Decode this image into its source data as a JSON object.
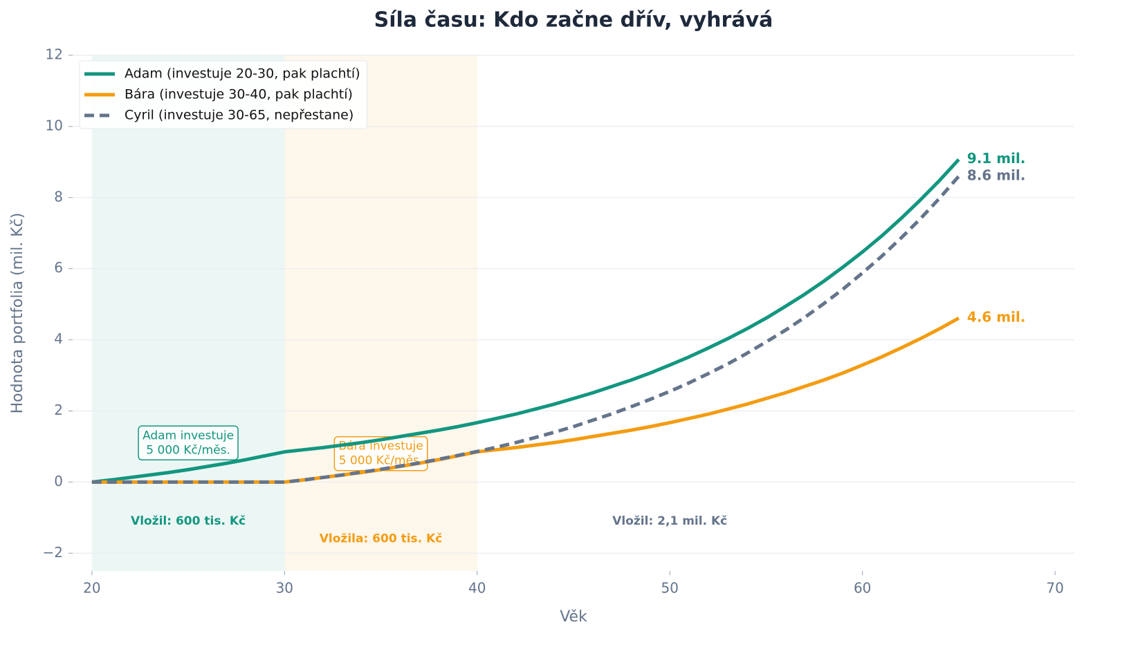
{
  "chart_data": {
    "type": "line",
    "title": "Síla času: Kdo začne dřív, vyhrává",
    "xlabel": "Věk",
    "ylabel": "Hodnota portfolia (mil. Kč)",
    "x": [
      20,
      21,
      22,
      23,
      24,
      25,
      26,
      27,
      28,
      29,
      30,
      31,
      32,
      33,
      34,
      35,
      36,
      37,
      38,
      39,
      40,
      41,
      42,
      43,
      44,
      45,
      46,
      47,
      48,
      49,
      50,
      51,
      52,
      53,
      54,
      55,
      56,
      57,
      58,
      59,
      60,
      61,
      62,
      63,
      64,
      65
    ],
    "series": [
      {
        "name": "Adam (investuje 20-30, pak plachtí)",
        "color": "#13967f",
        "dashed": false,
        "end_label": "9.1 mil.",
        "values": [
          0,
          0.06,
          0.13,
          0.2,
          0.27,
          0.35,
          0.44,
          0.53,
          0.63,
          0.74,
          0.85,
          0.91,
          0.97,
          1.04,
          1.11,
          1.19,
          1.28,
          1.37,
          1.46,
          1.56,
          1.67,
          1.79,
          1.91,
          2.05,
          2.19,
          2.35,
          2.51,
          2.69,
          2.87,
          3.07,
          3.29,
          3.52,
          3.77,
          4.03,
          4.31,
          4.61,
          4.94,
          5.28,
          5.65,
          6.05,
          6.47,
          6.92,
          7.41,
          7.93,
          8.48,
          9.07
        ]
      },
      {
        "name": "Bára (investuje 30-40, pak plachtí)",
        "color": "#f39c12",
        "dashed": false,
        "end_label": "4.6 mil.",
        "values": [
          0,
          0,
          0,
          0,
          0,
          0,
          0,
          0,
          0,
          0,
          0,
          0.06,
          0.13,
          0.2,
          0.27,
          0.35,
          0.44,
          0.53,
          0.63,
          0.74,
          0.85,
          0.91,
          0.97,
          1.04,
          1.11,
          1.19,
          1.28,
          1.37,
          1.46,
          1.56,
          1.67,
          1.79,
          1.91,
          2.05,
          2.19,
          2.35,
          2.51,
          2.69,
          2.87,
          3.07,
          3.29,
          3.52,
          3.77,
          4.03,
          4.31,
          4.61
        ]
      },
      {
        "name": "Cyril (investuje 30-65, nepřestane)",
        "color": "#64748b",
        "dashed": true,
        "end_label": "8.6 mil.",
        "values": [
          0,
          0,
          0,
          0,
          0,
          0,
          0,
          0,
          0,
          0,
          0,
          0.06,
          0.13,
          0.2,
          0.28,
          0.36,
          0.45,
          0.54,
          0.64,
          0.75,
          0.86,
          0.98,
          1.11,
          1.25,
          1.4,
          1.56,
          1.74,
          1.92,
          2.12,
          2.33,
          2.55,
          2.79,
          3.05,
          3.32,
          3.62,
          3.94,
          4.27,
          4.63,
          5.02,
          5.43,
          5.88,
          6.35,
          6.86,
          7.4,
          7.98,
          8.6
        ]
      }
    ],
    "spans": [
      {
        "x0": 20,
        "x1": 30,
        "color": "#13967f"
      },
      {
        "x0": 30,
        "x1": 40,
        "color": "#f39c12"
      }
    ],
    "annotations": [
      {
        "x": 25,
        "y": 1.1,
        "boxed": true,
        "color": "#13967f",
        "text": [
          "Adam investuje",
          "5 000 Kč/měs."
        ]
      },
      {
        "x": 35,
        "y": 0.8,
        "boxed": true,
        "color": "#f39c12",
        "text": [
          "Bára investuje",
          "5 000 Kč/měs."
        ]
      },
      {
        "x": 25,
        "y": -1.1,
        "boxed": false,
        "color": "#13967f",
        "text": [
          "Vložil: 600 tis. Kč"
        ]
      },
      {
        "x": 35,
        "y": -1.6,
        "boxed": false,
        "color": "#f39c12",
        "text": [
          "Vložila: 600 tis. Kč"
        ]
      },
      {
        "x": 50,
        "y": -1.1,
        "boxed": false,
        "color": "#64748b",
        "text": [
          "Vložil: 2,1 mil. Kč"
        ]
      }
    ],
    "xlim": [
      19,
      71
    ],
    "ylim": [
      -2.5,
      12
    ],
    "xticks": [
      20,
      30,
      40,
      50,
      60,
      70
    ],
    "yticks": [
      {
        "value": -2,
        "label": "−2"
      },
      0,
      2,
      4,
      6,
      8,
      10,
      12
    ],
    "grid": true,
    "legend": "upper left"
  }
}
